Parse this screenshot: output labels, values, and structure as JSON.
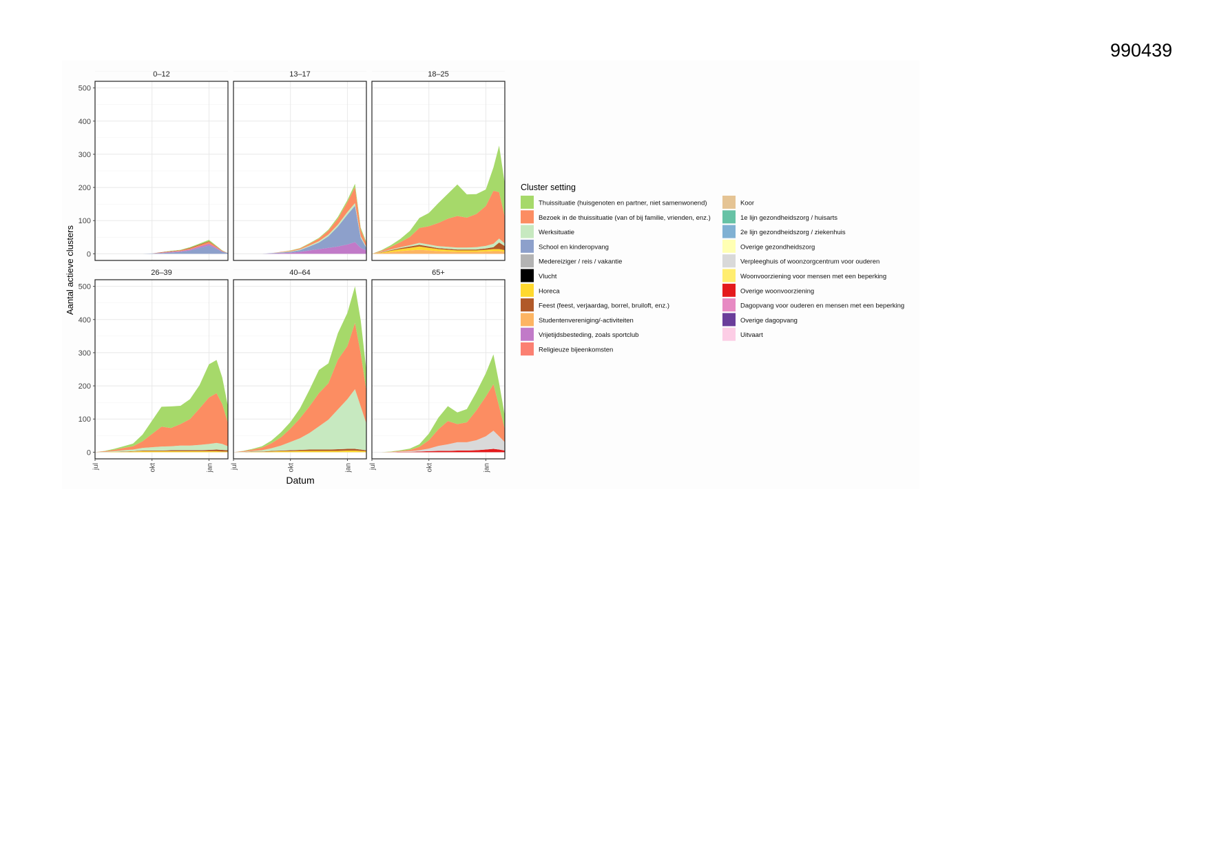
{
  "page": {
    "doc_id": "990439"
  },
  "chart_data": {
    "type": "area",
    "stacked": true,
    "facets": [
      "0–12",
      "13–17",
      "18–25",
      "26–39",
      "40–64",
      "65+"
    ],
    "xlabel": "Datum",
    "ylabel": "Aantal actieve clusters",
    "x_ticks": [
      "jul",
      "okt",
      "jan"
    ],
    "x_domain_months": [
      0,
      7
    ],
    "x_tick_values": [
      0,
      3,
      6
    ],
    "y_ticks": [
      "0",
      "100",
      "200",
      "300",
      "400",
      "500"
    ],
    "y_tick_values": [
      0,
      100,
      200,
      300,
      400,
      500
    ],
    "ylim": [
      -20,
      520
    ],
    "grid": true,
    "legend": {
      "title": "Cluster setting",
      "position": "right",
      "items": [
        {
          "label": "Thuissituatie (huisgenoten en partner, niet samenwonend)",
          "color": "#a6d96a"
        },
        {
          "label": "Bezoek in de thuissituatie (van of bij familie, vrienden, enz.)",
          "color": "#fc8d62"
        },
        {
          "label": "Werksituatie",
          "color": "#c7e9c0"
        },
        {
          "label": "School en kinderopvang",
          "color": "#8da0cb"
        },
        {
          "label": "Medereiziger / reis / vakantie",
          "color": "#b3b3b3"
        },
        {
          "label": "Vlucht",
          "color": "#000000"
        },
        {
          "label": "Horeca",
          "color": "#ffd92f"
        },
        {
          "label": "Feest (feest, verjaardag, borrel, bruiloft, enz.)",
          "color": "#b15928"
        },
        {
          "label": "Studentenvereniging/-activiteiten",
          "color": "#fdb462"
        },
        {
          "label": "Vrijetijdsbesteding, zoals sportclub",
          "color": "#c17ac8"
        },
        {
          "label": "Religieuze bijeenkomsten",
          "color": "#fb8072"
        },
        {
          "label": "Koor",
          "color": "#e5c494"
        },
        {
          "label": "1e lijn gezondheidszorg / huisarts",
          "color": "#66c2a5"
        },
        {
          "label": "2e lijn gezondheidszorg / ziekenhuis",
          "color": "#80b1d3"
        },
        {
          "label": "Overige gezondheidszorg",
          "color": "#ffffb3"
        },
        {
          "label": "Verpleeghuis of woonzorgcentrum voor ouderen",
          "color": "#d9d9d9"
        },
        {
          "label": "Woonvoorziening voor mensen met een beperking",
          "color": "#ffed6f"
        },
        {
          "label": "Overige woonvoorziening",
          "color": "#e41a1c"
        },
        {
          "label": "Dagopvang voor ouderen en mensen met een beperking",
          "color": "#e78ac3"
        },
        {
          "label": "Overige dagopvang",
          "color": "#6a3d9a"
        },
        {
          "label": "Uitvaart",
          "color": "#fccde5"
        }
      ]
    },
    "x": [
      0,
      0.5,
      1,
      1.5,
      2,
      2.5,
      3,
      3.5,
      4,
      4.5,
      5,
      5.5,
      6,
      6.4,
      6.7,
      7
    ],
    "panels": [
      {
        "facet": "0–12",
        "series": [
          {
            "name": "School en kinderopvang",
            "values": [
              0,
              0,
              0,
              0,
              0,
              0,
              1,
              2,
              4,
              6,
              10,
              18,
              25,
              15,
              6,
              2
            ]
          },
          {
            "name": "Vrijetijdsbesteding, zoals sportclub",
            "values": [
              0,
              0,
              0,
              0,
              0,
              0,
              0,
              1,
              2,
              2,
              3,
              4,
              5,
              3,
              1,
              0
            ]
          },
          {
            "name": "Bezoek in de thuissituatie (van of bij familie, vrienden, enz.)",
            "values": [
              0,
              0,
              0,
              0,
              0,
              0,
              0,
              1,
              1,
              2,
              3,
              4,
              6,
              3,
              1,
              0
            ]
          },
          {
            "name": "Feest (feest, verjaardag, borrel, bruiloft, enz.)",
            "values": [
              0,
              0,
              0,
              0,
              0,
              0,
              0,
              1,
              1,
              1,
              2,
              2,
              2,
              1,
              1,
              0
            ]
          },
          {
            "name": "Thuissituatie (huisgenoten en partner, niet samenwonend)",
            "values": [
              0,
              0,
              0,
              0,
              0,
              0,
              0,
              0,
              1,
              1,
              2,
              3,
              4,
              2,
              1,
              0
            ]
          }
        ]
      },
      {
        "facet": "13–17",
        "series": [
          {
            "name": "Vrijetijdsbesteding, zoals sportclub",
            "values": [
              0,
              0,
              0,
              0,
              1,
              2,
              3,
              6,
              10,
              14,
              18,
              22,
              28,
              35,
              18,
              10
            ]
          },
          {
            "name": "School en kinderopvang",
            "values": [
              0,
              0,
              0,
              0,
              1,
              2,
              3,
              5,
              12,
              20,
              35,
              60,
              90,
              110,
              30,
              8
            ]
          },
          {
            "name": "Werksituatie",
            "values": [
              0,
              0,
              0,
              0,
              0,
              1,
              1,
              2,
              3,
              4,
              5,
              6,
              8,
              8,
              5,
              3
            ]
          },
          {
            "name": "Bezoek in de thuissituatie (van of bij familie, vrienden, enz.)",
            "values": [
              0,
              0,
              0,
              0,
              0,
              1,
              2,
              3,
              5,
              8,
              12,
              18,
              30,
              48,
              20,
              10
            ]
          },
          {
            "name": "Thuissituatie (huisgenoten en partner, niet samenwonend)",
            "values": [
              0,
              0,
              0,
              0,
              0,
              0,
              1,
              1,
              2,
              2,
              3,
              5,
              6,
              10,
              6,
              4
            ]
          }
        ]
      },
      {
        "facet": "18–25",
        "series": [
          {
            "name": "Studentenvereniging/-activiteiten",
            "values": [
              0,
              2,
              5,
              8,
              10,
              12,
              10,
              8,
              7,
              6,
              6,
              6,
              7,
              8,
              8,
              6
            ]
          },
          {
            "name": "Horeca",
            "values": [
              0,
              2,
              4,
              6,
              8,
              10,
              8,
              6,
              5,
              4,
              4,
              4,
              5,
              6,
              6,
              5
            ]
          },
          {
            "name": "Feest (feest, verjaardag, borrel, bruiloft, enz.)",
            "values": [
              0,
              1,
              2,
              3,
              4,
              5,
              4,
              3,
              3,
              3,
              3,
              3,
              4,
              6,
              20,
              12
            ]
          },
          {
            "name": "Werksituatie",
            "values": [
              0,
              1,
              2,
              3,
              4,
              6,
              6,
              6,
              6,
              6,
              6,
              7,
              8,
              10,
              12,
              8
            ]
          },
          {
            "name": "Bezoek in de thuissituatie (van of bij familie, vrienden, enz.)",
            "values": [
              0,
              3,
              8,
              15,
              25,
              45,
              55,
              70,
              85,
              95,
              90,
              100,
              120,
              160,
              140,
              80
            ]
          },
          {
            "name": "Thuissituatie (huisgenoten en partner, niet samenwonend)",
            "values": [
              0,
              2,
              5,
              10,
              18,
              30,
              40,
              60,
              75,
              95,
              70,
              60,
              50,
              70,
              140,
              100
            ]
          }
        ]
      },
      {
        "facet": "26–39",
        "series": [
          {
            "name": "Horeca",
            "values": [
              0,
              0,
              1,
              1,
              2,
              3,
              3,
              3,
              3,
              3,
              3,
              3,
              3,
              3,
              2,
              2
            ]
          },
          {
            "name": "Feest (feest, verjaardag, borrel, bruiloft, enz.)",
            "values": [
              0,
              0,
              0,
              1,
              1,
              2,
              2,
              2,
              3,
              3,
              3,
              3,
              4,
              5,
              5,
              4
            ]
          },
          {
            "name": "Werksituatie",
            "values": [
              0,
              1,
              2,
              4,
              5,
              8,
              10,
              12,
              12,
              14,
              14,
              16,
              18,
              20,
              18,
              12
            ]
          },
          {
            "name": "Bezoek in de thuissituatie (van of bij familie, vrienden, enz.)",
            "values": [
              0,
              2,
              4,
              7,
              10,
              20,
              40,
              60,
              55,
              65,
              80,
              110,
              140,
              150,
              120,
              70
            ]
          },
          {
            "name": "Thuissituatie (huisgenoten en partner, niet samenwonend)",
            "values": [
              0,
              1,
              3,
              5,
              8,
              20,
              40,
              60,
              65,
              55,
              60,
              70,
              100,
              100,
              80,
              50
            ]
          }
        ]
      },
      {
        "facet": "40–64",
        "series": [
          {
            "name": "Horeca",
            "values": [
              0,
              0,
              1,
              1,
              2,
              3,
              3,
              4,
              4,
              4,
              4,
              4,
              5,
              5,
              4,
              3
            ]
          },
          {
            "name": "Feest (feest, verjaardag, borrel, bruiloft, enz.)",
            "values": [
              0,
              0,
              1,
              1,
              2,
              2,
              3,
              3,
              4,
              4,
              4,
              5,
              5,
              5,
              4,
              3
            ]
          },
          {
            "name": "Werksituatie",
            "values": [
              0,
              1,
              2,
              4,
              8,
              15,
              25,
              35,
              50,
              70,
              90,
              120,
              150,
              180,
              130,
              80
            ]
          },
          {
            "name": "Bezoek in de thuissituatie (van of bij familie, vrienden, enz.)",
            "values": [
              0,
              2,
              4,
              8,
              15,
              25,
              40,
              60,
              80,
              100,
              110,
              150,
              160,
              200,
              160,
              100
            ]
          },
          {
            "name": "Thuissituatie (huisgenoten en partner, niet samenwonend)",
            "values": [
              0,
              1,
              2,
              4,
              8,
              15,
              20,
              30,
              50,
              70,
              60,
              80,
              100,
              110,
              100,
              60
            ]
          }
        ]
      },
      {
        "facet": "65+",
        "series": [
          {
            "name": "Overige woonvoorziening",
            "values": [
              0,
              0,
              0,
              1,
              1,
              2,
              3,
              4,
              4,
              5,
              5,
              6,
              8,
              10,
              8,
              5
            ]
          },
          {
            "name": "Verpleeghuis of woonzorgcentrum voor ouderen",
            "values": [
              0,
              0,
              0,
              1,
              2,
              4,
              8,
              15,
              20,
              25,
              25,
              30,
              40,
              55,
              40,
              25
            ]
          },
          {
            "name": "Bezoek in de thuissituatie (van of bij familie, vrienden, enz.)",
            "values": [
              0,
              0,
              1,
              2,
              4,
              10,
              25,
              50,
              70,
              55,
              60,
              90,
              120,
              140,
              90,
              40
            ]
          },
          {
            "name": "Thuissituatie (huisgenoten en partner, niet samenwonend)",
            "values": [
              0,
              0,
              1,
              2,
              4,
              8,
              20,
              35,
              45,
              35,
              40,
              55,
              70,
              90,
              70,
              40
            ]
          }
        ]
      }
    ]
  }
}
